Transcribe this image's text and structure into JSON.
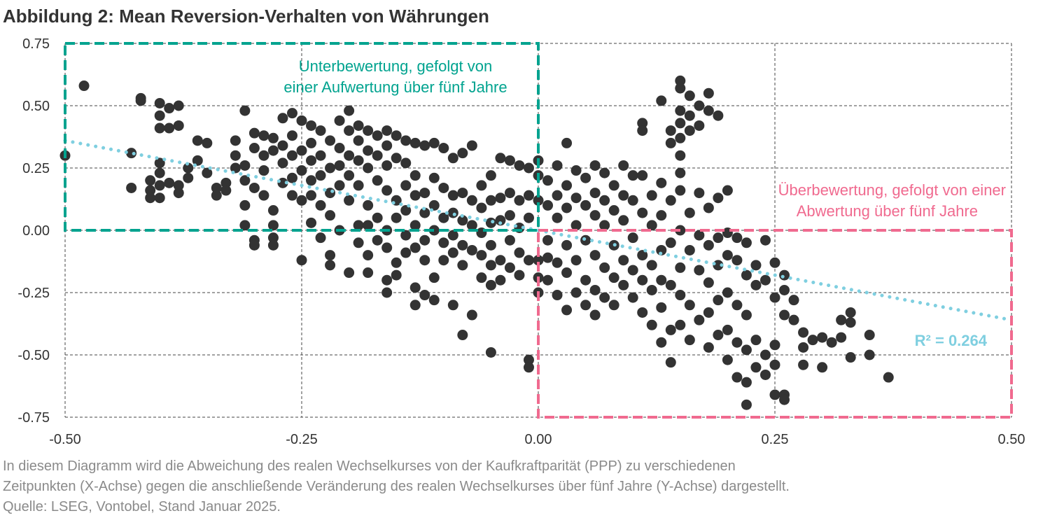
{
  "title": "Abbildung 2: Mean Reversion-Verhalten von Währungen",
  "caption": {
    "line1": "In diesem Diagramm wird die Abweichung des realen Wechselkurses von der Kaufkraftparität (PPP) zu verschiedenen",
    "line2": "Zeitpunkten (X-Achse) gegen die anschließende Veränderung des realen Wechselkurses über fünf Jahre (Y-Achse) dargestellt.",
    "source": "Quelle: LSEG, Vontobel, Stand Januar 2025."
  },
  "chart_data": {
    "type": "scatter",
    "xlim": [
      -0.5,
      0.5
    ],
    "ylim": [
      -0.75,
      0.75
    ],
    "xticks": [
      "-0.50",
      "-0.25",
      "0.00",
      "0.25",
      "0.50"
    ],
    "yticks": [
      "0.75",
      "0.50",
      "0.25",
      "0.00",
      "-0.25",
      "-0.50",
      "-0.75"
    ],
    "xtick_values": [
      -0.5,
      -0.25,
      0,
      0.25,
      0.5
    ],
    "ytick_values": [
      0.75,
      0.5,
      0.25,
      0,
      -0.25,
      -0.5,
      -0.75
    ],
    "grid": true,
    "colors": {
      "points": "#333333",
      "trend": "#7fcfe0",
      "undervalued": "#00a38f",
      "overvalued": "#f06a8f"
    },
    "trendline": {
      "style": "dotted",
      "slope": -0.72,
      "intercept": 0.0,
      "label": "R² = 0.264"
    },
    "regions": [
      {
        "x": [
          -0.5,
          0.0
        ],
        "y": [
          0.0,
          0.75
        ],
        "color": "#00a38f",
        "label_lines": [
          "Unterbewertung, gefolgt von",
          "einer Aufwertung über fünf Jahre"
        ]
      },
      {
        "x": [
          0.0,
          0.5
        ],
        "y": [
          -0.75,
          0.0
        ],
        "color": "#f06a8f",
        "label_lines": [
          "Überbewertung, gefolgt von einer",
          "Abwertung über fünf Jahre"
        ]
      }
    ],
    "points": [
      [
        -0.5,
        0.3
      ],
      [
        -0.48,
        0.58
      ],
      [
        -0.43,
        0.31
      ],
      [
        -0.43,
        0.17
      ],
      [
        -0.42,
        0.53
      ],
      [
        -0.42,
        0.52
      ],
      [
        -0.4,
        0.51
      ],
      [
        -0.4,
        0.46
      ],
      [
        -0.4,
        0.41
      ],
      [
        -0.39,
        0.49
      ],
      [
        -0.38,
        0.5
      ],
      [
        -0.38,
        0.42
      ],
      [
        -0.39,
        0.41
      ],
      [
        -0.41,
        0.2
      ],
      [
        -0.41,
        0.16
      ],
      [
        -0.41,
        0.13
      ],
      [
        -0.4,
        0.27
      ],
      [
        -0.4,
        0.23
      ],
      [
        -0.4,
        0.18
      ],
      [
        -0.4,
        0.13
      ],
      [
        -0.39,
        0.19
      ],
      [
        -0.38,
        0.18
      ],
      [
        -0.38,
        0.15
      ],
      [
        -0.37,
        0.25
      ],
      [
        -0.37,
        0.21
      ],
      [
        -0.36,
        0.36
      ],
      [
        -0.35,
        0.35
      ],
      [
        -0.36,
        0.28
      ],
      [
        -0.35,
        0.23
      ],
      [
        -0.34,
        0.17
      ],
      [
        -0.34,
        0.14
      ],
      [
        -0.33,
        0.19
      ],
      [
        -0.33,
        0.16
      ],
      [
        -0.32,
        0.36
      ],
      [
        -0.32,
        0.3
      ],
      [
        -0.32,
        0.25
      ],
      [
        -0.31,
        0.48
      ],
      [
        -0.31,
        0.26
      ],
      [
        -0.31,
        0.2
      ],
      [
        -0.31,
        0.1
      ],
      [
        -0.31,
        0.02
      ],
      [
        -0.3,
        0.39
      ],
      [
        -0.3,
        0.33
      ],
      [
        -0.3,
        0.17
      ],
      [
        -0.3,
        -0.04
      ],
      [
        -0.3,
        -0.06
      ],
      [
        -0.29,
        0.38
      ],
      [
        -0.29,
        0.3
      ],
      [
        -0.29,
        0.24
      ],
      [
        -0.29,
        0.14
      ],
      [
        -0.28,
        0.37
      ],
      [
        -0.28,
        0.32
      ],
      [
        -0.28,
        0.08
      ],
      [
        -0.28,
        0.02
      ],
      [
        -0.28,
        -0.03
      ],
      [
        -0.28,
        -0.06
      ],
      [
        -0.27,
        0.45
      ],
      [
        -0.27,
        0.34
      ],
      [
        -0.27,
        0.27
      ],
      [
        -0.27,
        0.19
      ],
      [
        -0.26,
        0.47
      ],
      [
        -0.26,
        0.38
      ],
      [
        -0.26,
        0.3
      ],
      [
        -0.26,
        0.21
      ],
      [
        -0.26,
        0.14
      ],
      [
        -0.25,
        0.44
      ],
      [
        -0.25,
        0.32
      ],
      [
        -0.25,
        0.24
      ],
      [
        -0.25,
        0.12
      ],
      [
        -0.25,
        -0.12
      ],
      [
        -0.24,
        0.42
      ],
      [
        -0.24,
        0.35
      ],
      [
        -0.24,
        0.28
      ],
      [
        -0.24,
        0.2
      ],
      [
        -0.24,
        0.14
      ],
      [
        -0.24,
        0.03
      ],
      [
        -0.23,
        0.4
      ],
      [
        -0.23,
        0.3
      ],
      [
        -0.23,
        0.22
      ],
      [
        -0.23,
        0.1
      ],
      [
        -0.23,
        -0.03
      ],
      [
        -0.22,
        0.36
      ],
      [
        -0.22,
        0.25
      ],
      [
        -0.22,
        0.15
      ],
      [
        -0.22,
        0.06
      ],
      [
        -0.22,
        -0.1
      ],
      [
        -0.22,
        -0.14
      ],
      [
        -0.21,
        0.44
      ],
      [
        -0.21,
        0.33
      ],
      [
        -0.21,
        0.26
      ],
      [
        -0.21,
        0.18
      ],
      [
        -0.21,
        0.0
      ],
      [
        -0.2,
        0.48
      ],
      [
        -0.2,
        0.4
      ],
      [
        -0.2,
        0.3
      ],
      [
        -0.2,
        0.22
      ],
      [
        -0.2,
        0.12
      ],
      [
        -0.2,
        -0.17
      ],
      [
        -0.19,
        0.42
      ],
      [
        -0.19,
        0.36
      ],
      [
        -0.19,
        0.28
      ],
      [
        -0.19,
        0.18
      ],
      [
        -0.19,
        0.02
      ],
      [
        -0.19,
        -0.05
      ],
      [
        -0.18,
        0.4
      ],
      [
        -0.18,
        0.32
      ],
      [
        -0.18,
        0.25
      ],
      [
        -0.18,
        0.1
      ],
      [
        -0.18,
        0.02
      ],
      [
        -0.18,
        -0.1
      ],
      [
        -0.18,
        -0.17
      ],
      [
        -0.17,
        0.38
      ],
      [
        -0.17,
        0.3
      ],
      [
        -0.17,
        0.2
      ],
      [
        -0.17,
        0.05
      ],
      [
        -0.17,
        -0.04
      ],
      [
        -0.16,
        0.4
      ],
      [
        -0.16,
        0.34
      ],
      [
        -0.16,
        0.26
      ],
      [
        -0.16,
        0.16
      ],
      [
        -0.16,
        0.0
      ],
      [
        -0.16,
        -0.07
      ],
      [
        -0.16,
        -0.2
      ],
      [
        -0.16,
        -0.25
      ],
      [
        -0.15,
        0.38
      ],
      [
        -0.15,
        0.29
      ],
      [
        -0.15,
        0.12
      ],
      [
        -0.15,
        0.05
      ],
      [
        -0.15,
        -0.13
      ],
      [
        -0.15,
        -0.18
      ],
      [
        -0.14,
        0.36
      ],
      [
        -0.14,
        0.27
      ],
      [
        -0.14,
        0.18
      ],
      [
        -0.14,
        0.08
      ],
      [
        -0.14,
        -0.02
      ],
      [
        -0.14,
        -0.09
      ],
      [
        -0.13,
        0.35
      ],
      [
        -0.13,
        0.22
      ],
      [
        -0.13,
        0.14
      ],
      [
        -0.13,
        0.02
      ],
      [
        -0.13,
        -0.07
      ],
      [
        -0.13,
        -0.23
      ],
      [
        -0.13,
        -0.3
      ],
      [
        -0.12,
        0.34
      ],
      [
        -0.12,
        0.15
      ],
      [
        -0.12,
        0.07
      ],
      [
        -0.12,
        -0.04
      ],
      [
        -0.12,
        -0.12
      ],
      [
        -0.12,
        -0.26
      ],
      [
        -0.11,
        0.35
      ],
      [
        -0.11,
        0.21
      ],
      [
        -0.11,
        0.1
      ],
      [
        -0.11,
        0.0
      ],
      [
        -0.11,
        -0.19
      ],
      [
        -0.11,
        -0.28
      ],
      [
        -0.1,
        0.33
      ],
      [
        -0.1,
        0.17
      ],
      [
        -0.1,
        0.05
      ],
      [
        -0.1,
        -0.05
      ],
      [
        -0.1,
        -0.12
      ],
      [
        -0.09,
        0.29
      ],
      [
        -0.09,
        0.14
      ],
      [
        -0.09,
        0.07
      ],
      [
        -0.09,
        -0.02
      ],
      [
        -0.09,
        -0.09
      ],
      [
        -0.09,
        -0.3
      ],
      [
        -0.08,
        0.31
      ],
      [
        -0.08,
        0.15
      ],
      [
        -0.08,
        0.04
      ],
      [
        -0.08,
        -0.06
      ],
      [
        -0.08,
        -0.14
      ],
      [
        -0.08,
        -0.42
      ],
      [
        -0.07,
        0.34
      ],
      [
        -0.07,
        0.12
      ],
      [
        -0.07,
        0.02
      ],
      [
        -0.07,
        -0.08
      ],
      [
        -0.07,
        -0.34
      ],
      [
        -0.06,
        0.18
      ],
      [
        -0.06,
        0.09
      ],
      [
        -0.06,
        -0.01
      ],
      [
        -0.06,
        -0.1
      ],
      [
        -0.06,
        -0.19
      ],
      [
        -0.05,
        0.22
      ],
      [
        -0.05,
        0.12
      ],
      [
        -0.05,
        0.03
      ],
      [
        -0.05,
        -0.06
      ],
      [
        -0.05,
        -0.14
      ],
      [
        -0.05,
        -0.22
      ],
      [
        -0.05,
        -0.49
      ],
      [
        -0.04,
        0.29
      ],
      [
        -0.04,
        0.13
      ],
      [
        -0.04,
        0.04
      ],
      [
        -0.04,
        -0.12
      ],
      [
        -0.04,
        -0.2
      ],
      [
        -0.03,
        0.28
      ],
      [
        -0.03,
        0.15
      ],
      [
        -0.03,
        0.06
      ],
      [
        -0.03,
        -0.04
      ],
      [
        -0.03,
        -0.15
      ],
      [
        -0.02,
        0.26
      ],
      [
        -0.02,
        0.12
      ],
      [
        -0.02,
        0.01
      ],
      [
        -0.02,
        -0.09
      ],
      [
        -0.02,
        -0.18
      ],
      [
        -0.01,
        0.25
      ],
      [
        -0.01,
        0.14
      ],
      [
        -0.01,
        0.05
      ],
      [
        -0.01,
        -0.12
      ],
      [
        -0.01,
        -0.52
      ],
      [
        -0.01,
        -0.55
      ],
      [
        0.0,
        0.28
      ],
      [
        0.0,
        0.22
      ],
      [
        0.0,
        0.12
      ],
      [
        0.0,
        -0.12
      ],
      [
        0.0,
        -0.19
      ],
      [
        0.0,
        -0.25
      ],
      [
        0.01,
        0.2
      ],
      [
        0.01,
        0.1
      ],
      [
        0.01,
        -0.04
      ],
      [
        0.01,
        -0.11
      ],
      [
        0.01,
        -0.2
      ],
      [
        0.02,
        0.26
      ],
      [
        0.02,
        0.14
      ],
      [
        0.02,
        0.05
      ],
      [
        0.02,
        -0.13
      ],
      [
        0.02,
        -0.26
      ],
      [
        0.03,
        0.35
      ],
      [
        0.03,
        0.18
      ],
      [
        0.03,
        0.09
      ],
      [
        0.03,
        -0.06
      ],
      [
        0.03,
        -0.17
      ],
      [
        0.03,
        -0.32
      ],
      [
        0.04,
        0.24
      ],
      [
        0.04,
        0.13
      ],
      [
        0.04,
        0.02
      ],
      [
        0.04,
        -0.12
      ],
      [
        0.04,
        -0.25
      ],
      [
        0.05,
        0.21
      ],
      [
        0.05,
        0.1
      ],
      [
        0.05,
        -0.04
      ],
      [
        0.05,
        -0.2
      ],
      [
        0.05,
        -0.3
      ],
      [
        0.06,
        0.26
      ],
      [
        0.06,
        0.15
      ],
      [
        0.06,
        0.06
      ],
      [
        0.06,
        -0.1
      ],
      [
        0.06,
        -0.24
      ],
      [
        0.06,
        -0.34
      ],
      [
        0.07,
        0.23
      ],
      [
        0.07,
        0.12
      ],
      [
        0.07,
        0.02
      ],
      [
        0.07,
        -0.15
      ],
      [
        0.07,
        -0.27
      ],
      [
        0.08,
        0.18
      ],
      [
        0.08,
        0.08
      ],
      [
        0.08,
        -0.06
      ],
      [
        0.08,
        -0.19
      ],
      [
        0.08,
        -0.3
      ],
      [
        0.09,
        0.26
      ],
      [
        0.09,
        0.14
      ],
      [
        0.09,
        0.04
      ],
      [
        0.09,
        -0.12
      ],
      [
        0.09,
        -0.22
      ],
      [
        0.1,
        0.22
      ],
      [
        0.1,
        0.12
      ],
      [
        0.1,
        -0.03
      ],
      [
        0.1,
        -0.16
      ],
      [
        0.1,
        -0.27
      ],
      [
        0.11,
        0.43
      ],
      [
        0.11,
        0.4
      ],
      [
        0.11,
        0.22
      ],
      [
        0.11,
        0.07
      ],
      [
        0.11,
        -0.1
      ],
      [
        0.11,
        -0.2
      ],
      [
        0.11,
        -0.33
      ],
      [
        0.12,
        0.14
      ],
      [
        0.12,
        0.02
      ],
      [
        0.12,
        -0.14
      ],
      [
        0.12,
        -0.24
      ],
      [
        0.12,
        -0.38
      ],
      [
        0.13,
        0.52
      ],
      [
        0.13,
        0.19
      ],
      [
        0.13,
        0.06
      ],
      [
        0.13,
        -0.08
      ],
      [
        0.13,
        -0.2
      ],
      [
        0.13,
        -0.31
      ],
      [
        0.13,
        -0.45
      ],
      [
        0.14,
        0.4
      ],
      [
        0.14,
        0.35
      ],
      [
        0.14,
        0.12
      ],
      [
        0.14,
        -0.05
      ],
      [
        0.14,
        -0.22
      ],
      [
        0.14,
        -0.4
      ],
      [
        0.14,
        -0.53
      ],
      [
        0.15,
        0.6
      ],
      [
        0.15,
        0.57
      ],
      [
        0.15,
        0.48
      ],
      [
        0.15,
        0.43
      ],
      [
        0.15,
        0.37
      ],
      [
        0.15,
        0.3
      ],
      [
        0.15,
        0.23
      ],
      [
        0.15,
        0.16
      ],
      [
        0.15,
        0.0
      ],
      [
        0.15,
        -0.15
      ],
      [
        0.15,
        -0.26
      ],
      [
        0.15,
        -0.38
      ],
      [
        0.16,
        0.54
      ],
      [
        0.16,
        0.46
      ],
      [
        0.16,
        0.4
      ],
      [
        0.16,
        0.07
      ],
      [
        0.16,
        -0.08
      ],
      [
        0.16,
        -0.3
      ],
      [
        0.16,
        -0.44
      ],
      [
        0.17,
        0.5
      ],
      [
        0.17,
        0.42
      ],
      [
        0.17,
        0.15
      ],
      [
        0.17,
        -0.02
      ],
      [
        0.17,
        -0.16
      ],
      [
        0.17,
        -0.36
      ],
      [
        0.18,
        0.55
      ],
      [
        0.18,
        0.48
      ],
      [
        0.18,
        0.09
      ],
      [
        0.18,
        -0.06
      ],
      [
        0.18,
        -0.21
      ],
      [
        0.18,
        -0.33
      ],
      [
        0.18,
        -0.47
      ],
      [
        0.19,
        0.46
      ],
      [
        0.19,
        0.13
      ],
      [
        0.19,
        -0.03
      ],
      [
        0.19,
        -0.14
      ],
      [
        0.19,
        -0.28
      ],
      [
        0.19,
        -0.42
      ],
      [
        0.2,
        0.16
      ],
      [
        0.2,
        -0.01
      ],
      [
        0.2,
        -0.1
      ],
      [
        0.2,
        -0.25
      ],
      [
        0.2,
        -0.4
      ],
      [
        0.2,
        -0.52
      ],
      [
        0.21,
        -0.03
      ],
      [
        0.21,
        -0.12
      ],
      [
        0.21,
        -0.3
      ],
      [
        0.21,
        -0.45
      ],
      [
        0.21,
        -0.59
      ],
      [
        0.22,
        -0.05
      ],
      [
        0.22,
        -0.18
      ],
      [
        0.22,
        -0.34
      ],
      [
        0.22,
        -0.48
      ],
      [
        0.22,
        -0.61
      ],
      [
        0.22,
        -0.7
      ],
      [
        0.23,
        -0.14
      ],
      [
        0.23,
        -0.22
      ],
      [
        0.23,
        -0.44
      ],
      [
        0.23,
        -0.55
      ],
      [
        0.24,
        -0.04
      ],
      [
        0.24,
        -0.2
      ],
      [
        0.24,
        -0.5
      ],
      [
        0.24,
        -0.58
      ],
      [
        0.25,
        -0.13
      ],
      [
        0.25,
        -0.27
      ],
      [
        0.25,
        -0.46
      ],
      [
        0.25,
        -0.54
      ],
      [
        0.25,
        -0.66
      ],
      [
        0.26,
        -0.18
      ],
      [
        0.26,
        -0.24
      ],
      [
        0.26,
        -0.34
      ],
      [
        0.26,
        -0.66
      ],
      [
        0.26,
        -0.68
      ],
      [
        0.27,
        -0.28
      ],
      [
        0.27,
        -0.36
      ],
      [
        0.28,
        -0.41
      ],
      [
        0.28,
        -0.47
      ],
      [
        0.28,
        -0.54
      ],
      [
        0.29,
        -0.44
      ],
      [
        0.3,
        -0.43
      ],
      [
        0.3,
        -0.55
      ],
      [
        0.31,
        -0.45
      ],
      [
        0.32,
        -0.36
      ],
      [
        0.32,
        -0.43
      ],
      [
        0.33,
        -0.33
      ],
      [
        0.33,
        -0.37
      ],
      [
        0.33,
        -0.51
      ],
      [
        0.35,
        -0.5
      ],
      [
        0.35,
        -0.42
      ],
      [
        0.37,
        -0.59
      ]
    ]
  }
}
